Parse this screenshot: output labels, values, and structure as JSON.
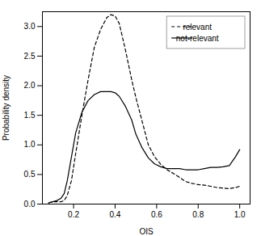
{
  "chart_data": {
    "type": "line",
    "xlabel": "OIS",
    "ylabel": "Probability density",
    "x": [
      0.08,
      0.1,
      0.12,
      0.14,
      0.155,
      0.17,
      0.19,
      0.21,
      0.24,
      0.27,
      0.3,
      0.33,
      0.36,
      0.38,
      0.4,
      0.42,
      0.45,
      0.48,
      0.5,
      0.53,
      0.56,
      0.59,
      0.62,
      0.65,
      0.68,
      0.71,
      0.74,
      0.77,
      0.8,
      0.83,
      0.86,
      0.89,
      0.92,
      0.95,
      0.98,
      1.0
    ],
    "series": [
      {
        "name": "relevant",
        "color": "#000000",
        "line_style": "dashed",
        "values": [
          0.02,
          0.04,
          0.04,
          0.04,
          0.06,
          0.15,
          0.4,
          0.85,
          1.5,
          2.1,
          2.65,
          2.95,
          3.15,
          3.2,
          3.18,
          3.05,
          2.6,
          2.1,
          1.8,
          1.4,
          1.0,
          0.8,
          0.67,
          0.58,
          0.52,
          0.45,
          0.38,
          0.35,
          0.33,
          0.32,
          0.3,
          0.28,
          0.27,
          0.26,
          0.28,
          0.3
        ]
      },
      {
        "name": "not-relevant",
        "color": "#000000",
        "line_style": "solid",
        "values": [
          0.02,
          0.04,
          0.06,
          0.1,
          0.18,
          0.4,
          0.8,
          1.2,
          1.55,
          1.75,
          1.85,
          1.9,
          1.9,
          1.9,
          1.88,
          1.82,
          1.65,
          1.42,
          1.18,
          0.95,
          0.78,
          0.68,
          0.63,
          0.6,
          0.6,
          0.6,
          0.58,
          0.58,
          0.58,
          0.6,
          0.62,
          0.62,
          0.63,
          0.65,
          0.8,
          0.92
        ]
      }
    ],
    "xlim": [
      0.05,
      1.05
    ],
    "ylim": [
      0.0,
      3.25
    ],
    "xticks": [
      0.2,
      0.4,
      0.6,
      0.8,
      {
        "value": 1.0,
        "label": "1.0"
      }
    ],
    "yticks": [
      {
        "value": 0.0,
        "label": "0.0"
      },
      0.5,
      {
        "value": 1.0,
        "label": "1.0"
      },
      1.5,
      {
        "value": 2.0,
        "label": "2.0"
      },
      2.5,
      {
        "value": 3.0,
        "label": "3.0"
      }
    ],
    "grid": false,
    "legend": "upper right"
  }
}
